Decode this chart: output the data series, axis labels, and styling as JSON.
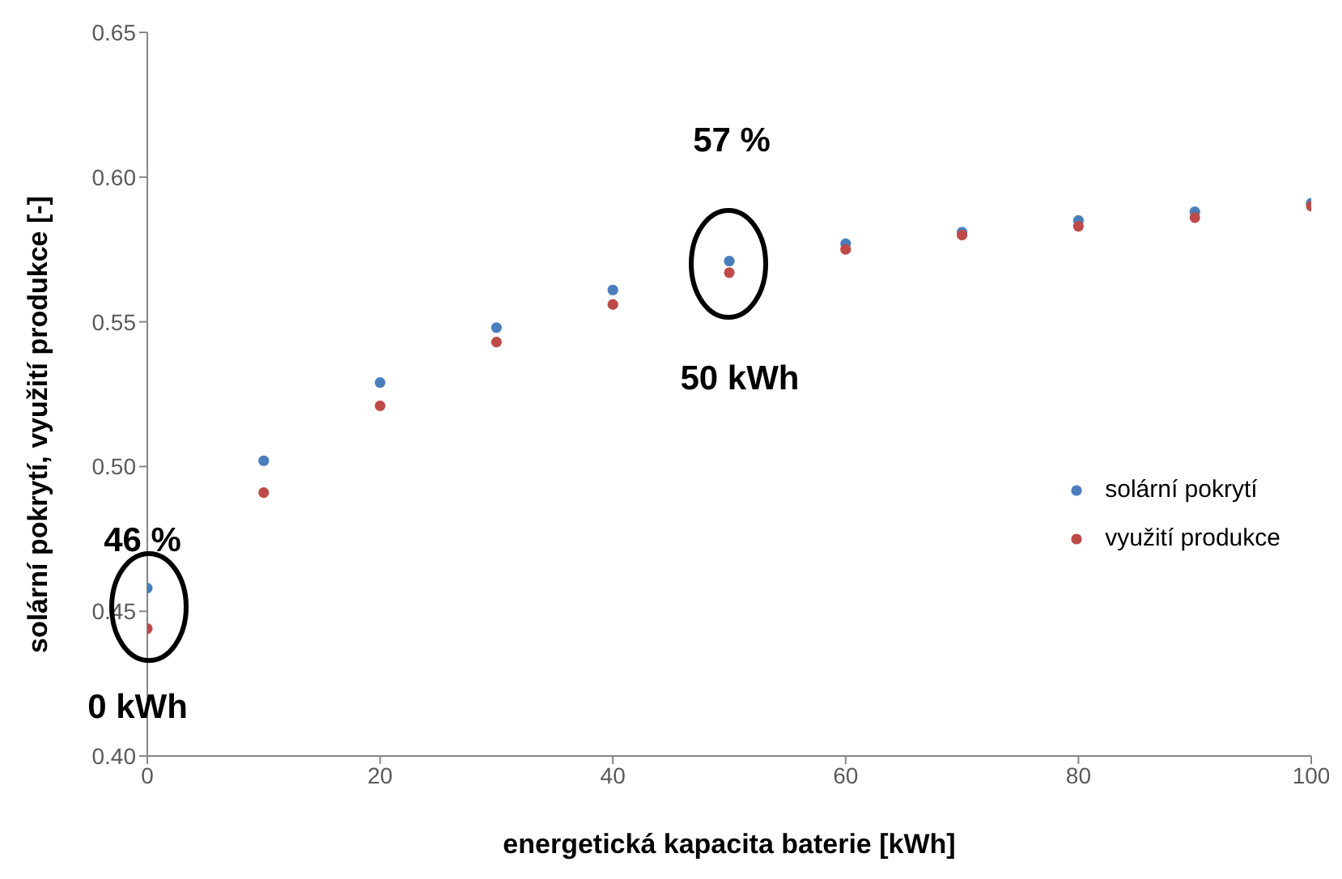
{
  "chart_data": {
    "type": "scatter",
    "xlabel": "energetická kapacita baterie [kWh]",
    "ylabel": "solární pokrytí, využití produkce [-]",
    "x": [
      0,
      10,
      20,
      30,
      40,
      50,
      60,
      70,
      80,
      90,
      100
    ],
    "series": [
      {
        "name": "solární pokrytí",
        "color": "#4a7ebb",
        "values": [
          0.458,
          0.502,
          0.529,
          0.548,
          0.561,
          0.571,
          0.577,
          0.581,
          0.585,
          0.588,
          0.591
        ]
      },
      {
        "name": "využití produkce",
        "color": "#be4b48",
        "values": [
          0.444,
          0.491,
          0.521,
          0.543,
          0.556,
          0.567,
          0.575,
          0.58,
          0.583,
          0.586,
          0.59
        ]
      }
    ],
    "xlim": [
      0,
      100
    ],
    "xticks": [
      0,
      20,
      40,
      60,
      80,
      100
    ],
    "ylim": [
      0.4,
      0.65
    ],
    "yticks": [
      {
        "value": 0.4,
        "label": "0.40"
      },
      {
        "value": 0.45,
        "label": "0.45"
      },
      {
        "value": 0.5,
        "label": "0.50"
      },
      {
        "value": 0.55,
        "label": "0.55"
      },
      {
        "value": 0.6,
        "label": "0.60"
      },
      {
        "value": 0.65,
        "label": "0.65"
      }
    ],
    "marker": "circle",
    "legend": "right",
    "grid": false,
    "annotations": [
      "46 %",
      "0 kWh",
      "57 %",
      "50 kWh"
    ]
  }
}
